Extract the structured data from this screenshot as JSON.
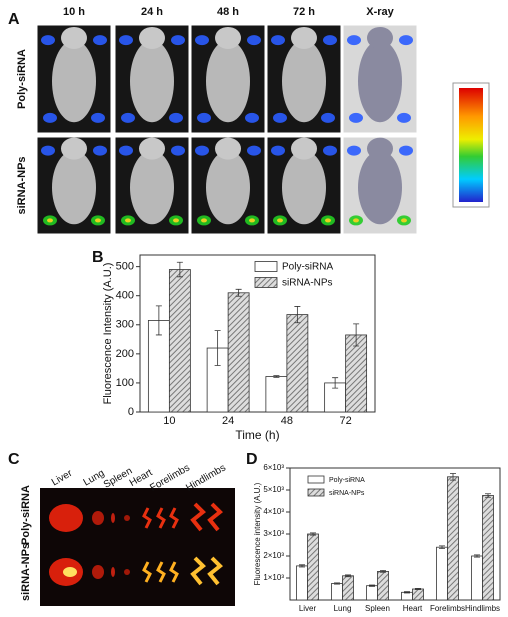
{
  "panels": [
    "A",
    "B",
    "C",
    "D"
  ],
  "panel_a": {
    "columns": [
      "10 h",
      "24 h",
      "48 h",
      "72 h",
      "X-ray"
    ],
    "rows": [
      "Poly-siRNA",
      "siRNA-NPs"
    ]
  },
  "panel_c": {
    "organs": [
      "Liver",
      "Lung",
      "Spleen",
      "Heart",
      "Forelimbs",
      "Hindlimbs"
    ],
    "rows": [
      "Poly-siRNA",
      "siRNA-NPs"
    ]
  },
  "chart_data": [
    {
      "type": "bar",
      "ylabel": "Fluorescence Intensity (A.U.)",
      "xlabel": "Time (h)",
      "categories": [
        "10",
        "24",
        "48",
        "72"
      ],
      "series": [
        {
          "name": "Poly-siRNA",
          "color": "#ffffff",
          "values": [
            315,
            220,
            122,
            100
          ],
          "errors": [
            50,
            60,
            3,
            18
          ]
        },
        {
          "name": "siRNA-NPs",
          "color": "#777777",
          "hatch": true,
          "values": [
            490,
            410,
            335,
            265
          ],
          "errors": [
            25,
            12,
            28,
            38
          ]
        }
      ],
      "ylim": [
        0,
        540
      ],
      "yticks": [
        0,
        100,
        200,
        300,
        400,
        500
      ],
      "legend": "upper right"
    },
    {
      "type": "bar",
      "ylabel": "Fluorescence intensity (A.U.)",
      "categories": [
        "Liver",
        "Lung",
        "Spleen",
        "Heart",
        "Forelimbs",
        "Hindlimbs"
      ],
      "series": [
        {
          "name": "Poly-siRNA",
          "color": "#ffffff",
          "values": [
            1550,
            750,
            650,
            350,
            2400,
            2000
          ],
          "errors": [
            50,
            30,
            30,
            30,
            60,
            50
          ]
        },
        {
          "name": "siRNA-NPs",
          "color": "#777777",
          "hatch": true,
          "values": [
            3000,
            1100,
            1300,
            500,
            5600,
            4750
          ],
          "errors": [
            50,
            40,
            40,
            30,
            150,
            80
          ]
        }
      ],
      "ylim": [
        0,
        6000
      ],
      "yticks": [
        {
          "value": 1000,
          "label": "1×10³"
        },
        {
          "value": 2000,
          "label": "2×10³"
        },
        {
          "value": 3000,
          "label": "3×10³"
        },
        {
          "value": 4000,
          "label": "4×10³"
        },
        {
          "value": 5000,
          "label": "5×10³"
        },
        {
          "value": 6000,
          "label": "6×10³"
        }
      ],
      "legend": "upper left"
    }
  ]
}
